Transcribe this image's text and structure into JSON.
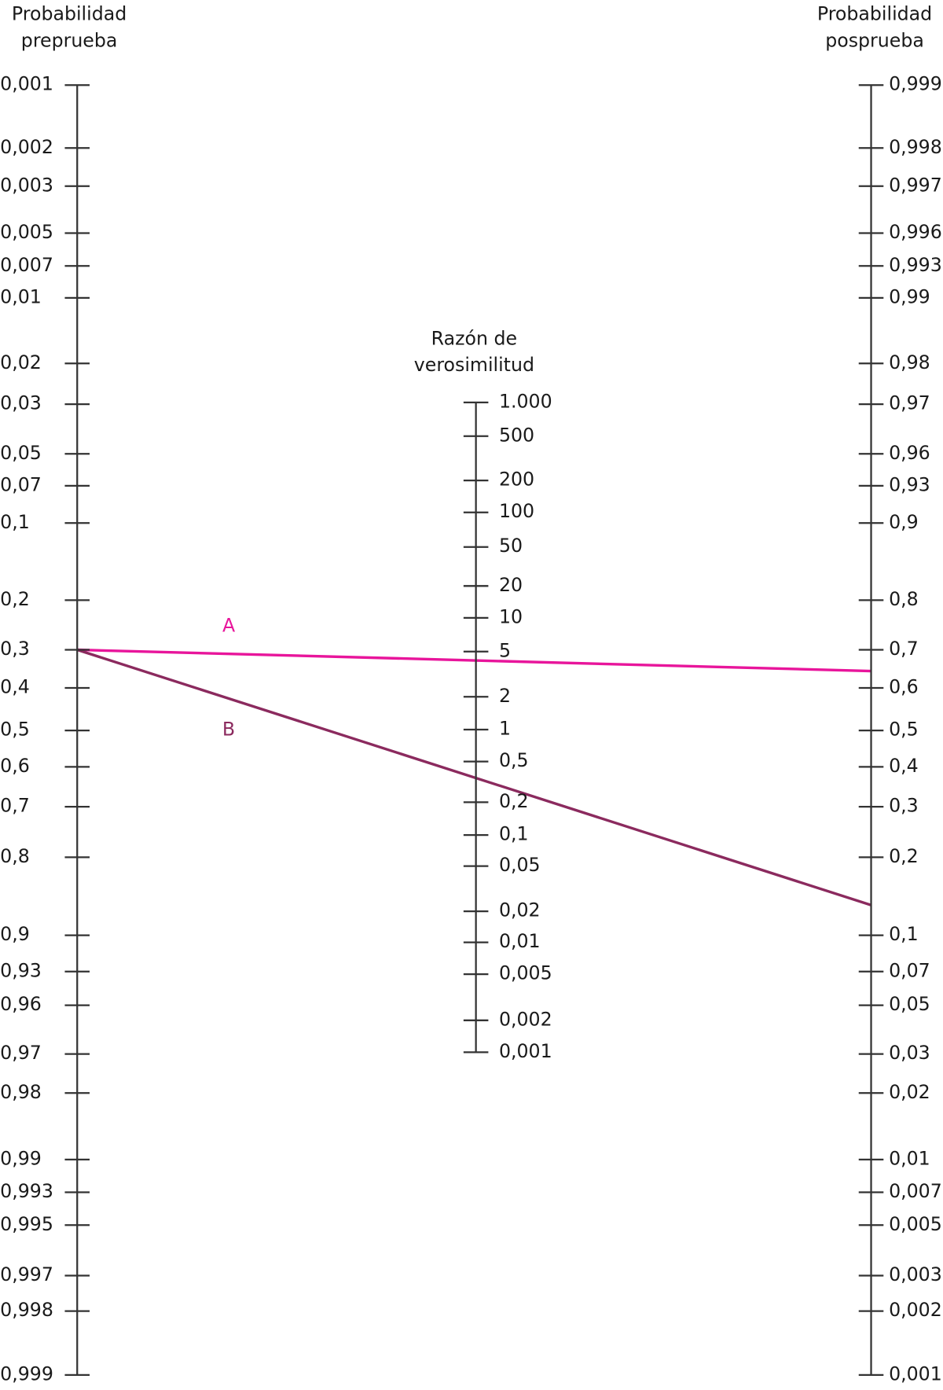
{
  "pretest": {
    "title": [
      "Probabilidad",
      "preprueba"
    ],
    "ticks": [
      "0,001",
      "0,002",
      "0,003",
      "0,005",
      "0,007",
      "0,01",
      "0,02",
      "0,03",
      "0,05",
      "0,07",
      "0,1",
      "0,2",
      "0,3",
      "0,4",
      "0,5",
      "0,6",
      "0,7",
      "0,8",
      "0,9",
      "0,93",
      "0,96",
      "0,97",
      "0,98",
      "0,99",
      "0,993",
      "0,995",
      "0,997",
      "0,998",
      "0,999"
    ]
  },
  "likelihood_ratio": {
    "title": [
      "Razón de",
      "verosimilitud"
    ],
    "ticks": [
      "1.000",
      "500",
      "200",
      "100",
      "50",
      "20",
      "10",
      "5",
      "2",
      "1",
      "0,5",
      "0,2",
      "0,1",
      "0,05",
      "0,02",
      "0,01",
      "0,005",
      "0,002",
      "0,001"
    ]
  },
  "posttest": {
    "title": [
      "Probabilidad",
      "posprueba"
    ],
    "ticks": [
      "0,999",
      "0,998",
      "0,997",
      "0,996",
      "0,993",
      "0,99",
      "0,98",
      "0,97",
      "0,96",
      "0,93",
      "0,9",
      "0,8",
      "0,7",
      "0,6",
      "0,5",
      "0,4",
      "0,3",
      "0,2",
      "0,1",
      "0,07",
      "0,05",
      "0,03",
      "0,02",
      "0,01",
      "0,007",
      "0,005",
      "0,003",
      "0,002",
      "0,001"
    ]
  },
  "lines": {
    "a": "A",
    "b": "B"
  }
}
